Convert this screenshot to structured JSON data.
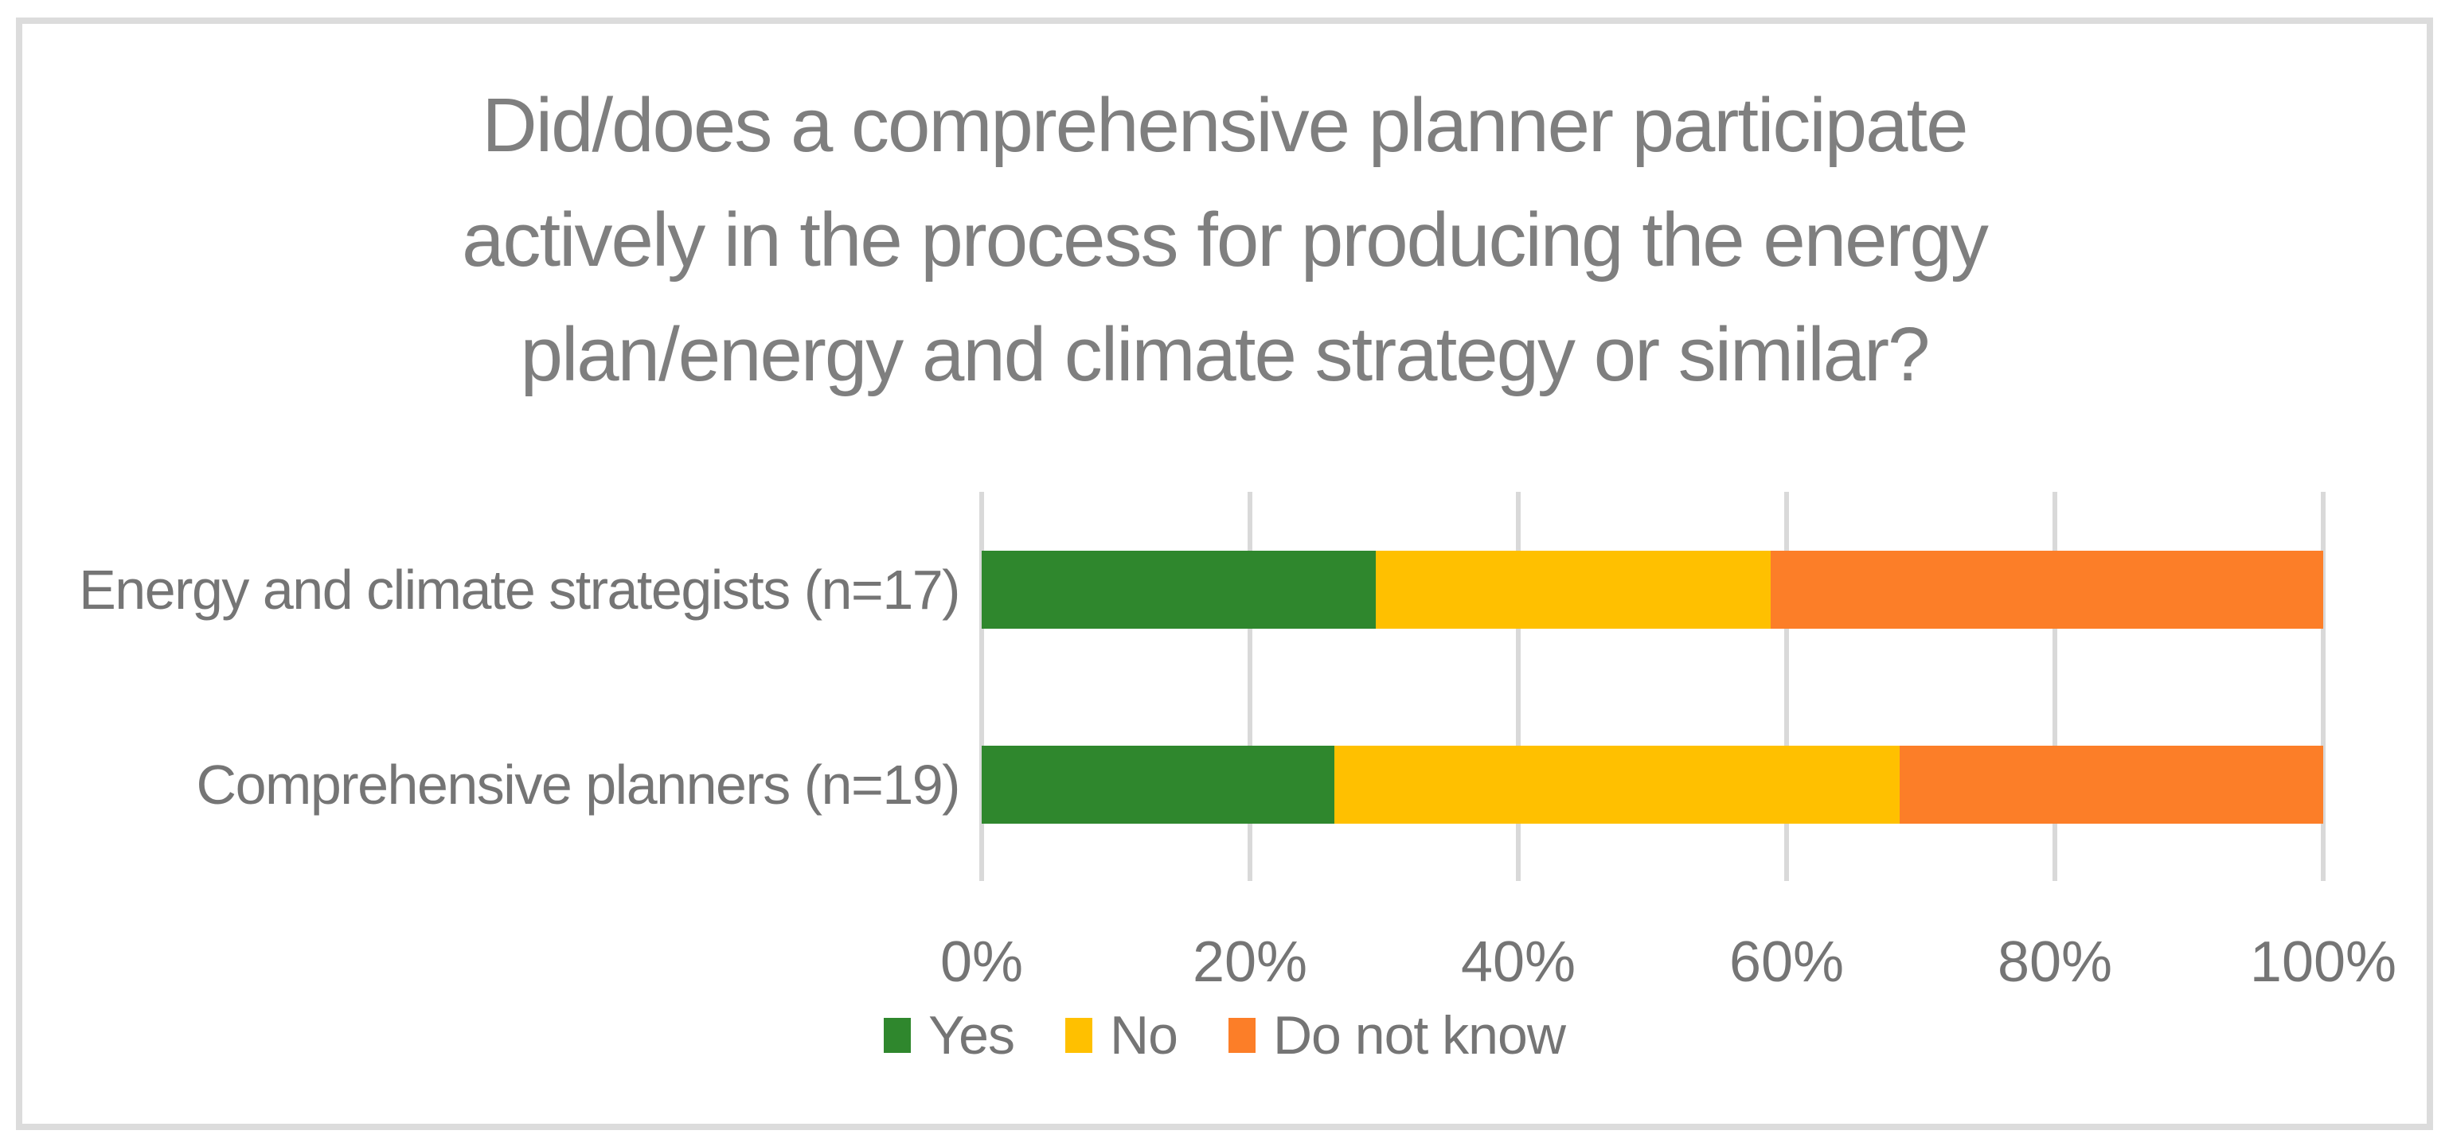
{
  "figure": {
    "title_lines": [
      "Did/does a comprehensive planner participate",
      "actively in the process for producing the energy",
      "plan/energy and climate strategy or similar?"
    ]
  },
  "chart_data": {
    "type": "bar",
    "subtype": "horizontal-stacked",
    "title": "Did/does a comprehensive planner participate actively in the process for producing the energy plan/energy and climate strategy or similar?",
    "categories": [
      "Energy and climate strategists (n=17)",
      "Comprehensive planners (n=19)"
    ],
    "series": [
      {
        "name": "Yes",
        "color": "#2F872D",
        "values": [
          29.4,
          26.3
        ]
      },
      {
        "name": "No",
        "color": "#FFC000",
        "values": [
          29.4,
          42.1
        ]
      },
      {
        "name": "Do not know",
        "color": "#FC7E28",
        "values": [
          41.2,
          31.6
        ]
      }
    ],
    "x_axis": {
      "tick_labels": [
        "0%",
        "20%",
        "40%",
        "60%",
        "80%",
        "100%"
      ],
      "min": 0,
      "max": 100,
      "unit": "%"
    },
    "legend_position": "bottom",
    "grid": true
  },
  "style": {
    "title_color": "#7F7F7F",
    "label_color": "#757575",
    "gridline_color": "#D9D9D9",
    "border_color": "#DCDCDC",
    "background": "#FFFFFF"
  }
}
